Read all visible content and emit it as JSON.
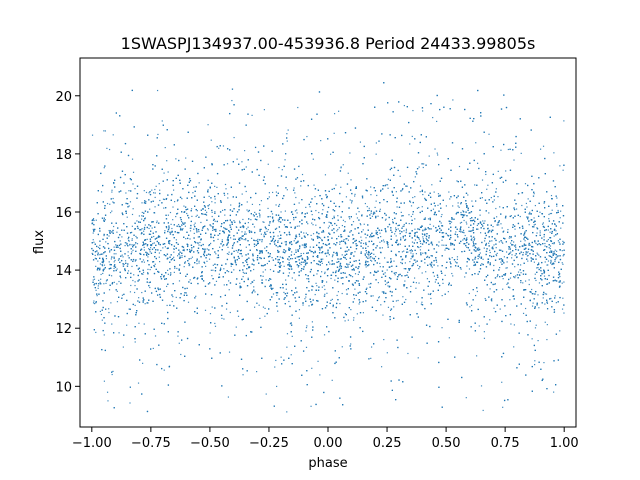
{
  "chart_data": {
    "type": "scatter",
    "title": "1SWASPJ134937.00-453936.8 Period 24433.99805s",
    "xlabel": "phase",
    "ylabel": "flux",
    "xlim": [
      -1.05,
      1.05
    ],
    "ylim": [
      8.6,
      21.3
    ],
    "xticks": [
      -1.0,
      -0.75,
      -0.5,
      -0.25,
      0.0,
      0.25,
      0.5,
      0.75,
      1.0
    ],
    "xtick_labels": [
      "−1.00",
      "−0.75",
      "−0.50",
      "−0.25",
      "0.00",
      "0.25",
      "0.50",
      "0.75",
      "1.00"
    ],
    "yticks": [
      10,
      12,
      14,
      16,
      18,
      20
    ],
    "ytick_labels": [
      "10",
      "12",
      "14",
      "16",
      "18",
      "20"
    ],
    "grid": false,
    "marker_color": "#1f77b4",
    "series": [
      {
        "x_range": [
          -1.0,
          1.0
        ],
        "y_min": 9.1,
        "y_max": 20.6,
        "core_band": [
          13.0,
          16.5
        ],
        "trend": [
          {
            "x": -1.0,
            "y": 14.4
          },
          {
            "x": -0.75,
            "y": 14.9
          },
          {
            "x": -0.5,
            "y": 15.1
          },
          {
            "x": -0.25,
            "y": 14.7
          },
          {
            "x": 0.0,
            "y": 14.4
          },
          {
            "x": 0.25,
            "y": 14.9
          },
          {
            "x": 0.5,
            "y": 15.1
          },
          {
            "x": 0.75,
            "y": 14.8
          },
          {
            "x": 1.0,
            "y": 14.4
          }
        ]
      }
    ]
  }
}
